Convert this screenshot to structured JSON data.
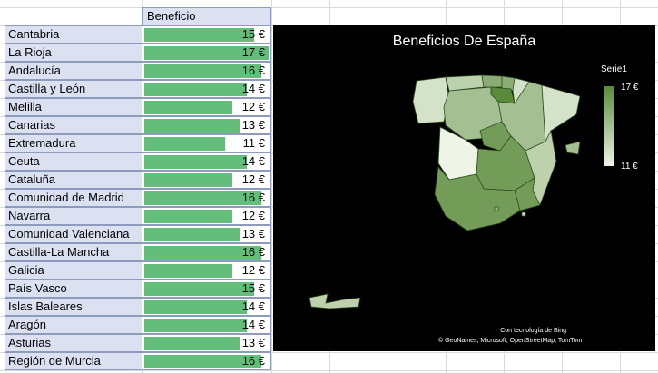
{
  "sheet": {
    "header": "Beneficio",
    "rows": [
      {
        "region": "Cantabria",
        "value": 15,
        "display": "15 €"
      },
      {
        "region": "La Rioja",
        "value": 17,
        "display": "17 €"
      },
      {
        "region": "Andalucía",
        "value": 16,
        "display": "16 €"
      },
      {
        "region": "Castilla y León",
        "value": 14,
        "display": "14 €"
      },
      {
        "region": "Melilla",
        "value": 12,
        "display": "12 €"
      },
      {
        "region": "Canarias",
        "value": 13,
        "display": "13 €"
      },
      {
        "region": "Extremadura",
        "value": 11,
        "display": "11 €"
      },
      {
        "region": "Ceuta",
        "value": 14,
        "display": "14 €"
      },
      {
        "region": "Cataluña",
        "value": 12,
        "display": "12 €"
      },
      {
        "region": "Comunidad de Madrid",
        "value": 16,
        "display": "16 €"
      },
      {
        "region": "Navarra",
        "value": 12,
        "display": "12 €"
      },
      {
        "region": "Comunidad Valenciana",
        "value": 13,
        "display": "13 €"
      },
      {
        "region": "Castilla-La Mancha",
        "value": 16,
        "display": "16 €"
      },
      {
        "region": "Galicia",
        "value": 12,
        "display": "12 €"
      },
      {
        "region": "País Vasco",
        "value": 15,
        "display": "15 €"
      },
      {
        "region": "Islas Baleares",
        "value": 14,
        "display": "14 €"
      },
      {
        "region": "Aragón",
        "value": 14,
        "display": "14 €"
      },
      {
        "region": "Asturias",
        "value": 13,
        "display": "13 €"
      },
      {
        "region": "Región de Murcia",
        "value": 16,
        "display": "16 €"
      }
    ]
  },
  "chart": {
    "title": "Beneficios De España",
    "legend_title": "Serie1",
    "legend_max": "17 €",
    "legend_min": "11 €",
    "credit_line1": "Con tecnología de Bing",
    "credit_line2": "© GeoNames, Microsoft, OpenStreetMap, TomTom",
    "colors": {
      "background": "#000000",
      "low": "#eef4e6",
      "high": "#5a8a3c",
      "databar": "#63be7b",
      "label_fill": "#dce1f2"
    }
  },
  "chart_data": {
    "type": "map",
    "title": "Beneficios De España",
    "series": [
      {
        "name": "Serie1",
        "categories": [
          "Cantabria",
          "La Rioja",
          "Andalucía",
          "Castilla y León",
          "Melilla",
          "Canarias",
          "Extremadura",
          "Ceuta",
          "Cataluña",
          "Comunidad de Madrid",
          "Navarra",
          "Comunidad Valenciana",
          "Castilla-La Mancha",
          "Galicia",
          "País Vasco",
          "Islas Baleares",
          "Aragón",
          "Asturias",
          "Región de Murcia"
        ],
        "values": [
          15,
          17,
          16,
          14,
          12,
          13,
          11,
          14,
          12,
          16,
          12,
          13,
          16,
          12,
          15,
          14,
          14,
          13,
          16
        ]
      }
    ],
    "color_scale": {
      "min": 11,
      "max": 17
    },
    "legend_placement": "right"
  }
}
